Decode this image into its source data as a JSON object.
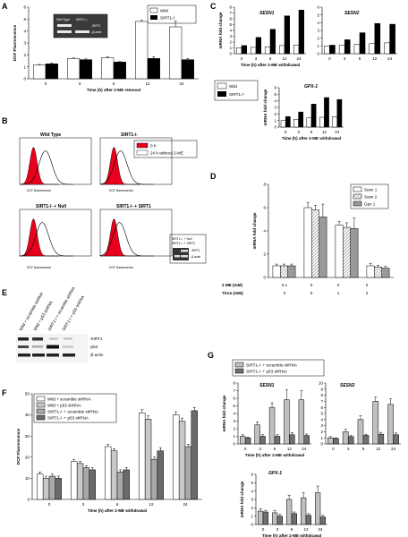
{
  "chart_data": [
    {
      "id": "A",
      "type": "bar",
      "panel_letter": "A",
      "ylabel": "DCF Fluorescence",
      "xlabel": "Time (h) after 2-ME removal",
      "categories": [
        "0",
        "3",
        "6",
        "12",
        "24"
      ],
      "ylim": [
        0,
        6
      ],
      "yticks": [
        0,
        1,
        2,
        3,
        4,
        5,
        6
      ],
      "legend_position": "top-right",
      "inset_labels": [
        "Wild Type",
        "SIRT1-/-",
        "-SIRT1",
        "-β-actin"
      ],
      "series": [
        {
          "name": "Wild",
          "color": "#ffffff",
          "values": [
            1.15,
            1.7,
            1.75,
            4.8,
            4.35
          ],
          "errors": [
            0.05,
            0.06,
            0.1,
            0.1,
            0.5
          ]
        },
        {
          "name": "SIRT1-/-",
          "color": "#000000",
          "values": [
            1.25,
            1.6,
            1.4,
            1.7,
            1.6
          ],
          "errors": [
            0.05,
            0.06,
            0.05,
            0.15,
            0.1
          ]
        }
      ]
    },
    {
      "id": "C1",
      "type": "bar",
      "panel_letter": "C",
      "title": "SESN1",
      "ylabel": "mRNA fold change",
      "xlabel": "Time (h) after 2-ME withdrawal",
      "categories": [
        "0",
        "3",
        "6",
        "12",
        "24"
      ],
      "ylim": [
        0,
        8
      ],
      "yticks": [
        0,
        1,
        2,
        3,
        4,
        5,
        6,
        7,
        8
      ],
      "series": [
        {
          "name": "Wild",
          "color": "#ffffff",
          "values": [
            1,
            1.1,
            1.2,
            1.4,
            1.5
          ]
        },
        {
          "name": "SIRT1-/-",
          "color": "#000000",
          "values": [
            1.4,
            2.8,
            4.2,
            6.5,
            7.5
          ]
        }
      ]
    },
    {
      "id": "C2",
      "type": "bar",
      "title": "SESN2",
      "categories": [
        "0",
        "3",
        "6",
        "12",
        "24"
      ],
      "ylim": [
        0,
        6
      ],
      "yticks": [
        0,
        1,
        2,
        3,
        4,
        5,
        6
      ],
      "series": [
        {
          "name": "Wild",
          "color": "#ffffff",
          "values": [
            1,
            1.1,
            1.2,
            1.3,
            1.4
          ]
        },
        {
          "name": "SIRT1-/-",
          "color": "#000000",
          "values": [
            1.1,
            1.8,
            2.7,
            3.9,
            3.8
          ]
        }
      ]
    },
    {
      "id": "C3",
      "type": "bar",
      "title": "GPX-1",
      "ylabel": "mRNA fold change",
      "xlabel": "Time (h) after 2-ME withdrawal",
      "categories": [
        "0",
        "3",
        "6",
        "12",
        "24"
      ],
      "ylim": [
        0,
        6
      ],
      "yticks": [
        0,
        1,
        2,
        3,
        4,
        5,
        6
      ],
      "legend_position": "left",
      "series": [
        {
          "name": "Wild",
          "color": "#ffffff",
          "values": [
            1,
            1.2,
            1.4,
            1.5,
            1.6
          ]
        },
        {
          "name": "SIRT1-/-",
          "color": "#000000",
          "values": [
            1.6,
            2.3,
            3.5,
            4.5,
            4.2
          ]
        }
      ]
    },
    {
      "id": "D",
      "type": "bar",
      "panel_letter": "D",
      "ylabel": "mRNA fold change",
      "ylim": [
        0,
        8
      ],
      "yticks": [
        0,
        2,
        4,
        6,
        8
      ],
      "legend_position": "top-right",
      "row_labels": [
        {
          "label": "2 ME (mM)",
          "values": [
            "0.1",
            "0",
            "0",
            "0"
          ]
        },
        {
          "label": "Tiron (mM)",
          "values": [
            "0",
            "0",
            "1",
            "2"
          ]
        }
      ],
      "categories": [
        "1",
        "2",
        "3",
        "4"
      ],
      "series": [
        {
          "name": "Sesn 1",
          "pattern": "white",
          "values": [
            1,
            6,
            4.5,
            1
          ],
          "errors": [
            0.15,
            0.45,
            0.3,
            0.2
          ]
        },
        {
          "name": "Sesn 2",
          "pattern": "hatch",
          "values": [
            1,
            5.8,
            4.3,
            0.9
          ],
          "errors": [
            0.15,
            0.4,
            0.4,
            0.15
          ]
        },
        {
          "name": "Gpx 1",
          "pattern": "gray",
          "values": [
            1,
            5.2,
            4.2,
            0.8
          ],
          "errors": [
            0.15,
            1.1,
            0.9,
            0.15
          ]
        }
      ]
    },
    {
      "id": "F",
      "type": "bar",
      "panel_letter": "F",
      "ylabel": "DCF Fluorescence",
      "xlabel": "Time (h) after 2-ME withdrawal",
      "categories": [
        "0",
        "3",
        "6",
        "12",
        "24"
      ],
      "ylim": [
        0,
        50
      ],
      "yticks": [
        0,
        10,
        20,
        30,
        40,
        50
      ],
      "legend_position": "top-left",
      "series": [
        {
          "name": "Wild + scramble shRNA",
          "color": "#ffffff",
          "values": [
            12,
            18,
            25,
            41,
            40
          ],
          "errors": [
            1,
            1,
            1,
            1.5,
            1.5
          ]
        },
        {
          "name": "Wild + p53 shRNA",
          "color": "#c8c8c8",
          "values": [
            10,
            17,
            23,
            38,
            37
          ],
          "errors": [
            1,
            1,
            1,
            1.5,
            1.5
          ]
        },
        {
          "name": "SIRT1-/- + scramble shRNA",
          "color": "#a8a8a8",
          "values": [
            11,
            15,
            13,
            19,
            25
          ],
          "errors": [
            1,
            1,
            1,
            1,
            1
          ]
        },
        {
          "name": "SIRT1-/- + p53 shRNA",
          "color": "#6a6a6a",
          "values": [
            10,
            14,
            14,
            23,
            42
          ],
          "errors": [
            1,
            1,
            1,
            1.5,
            1.5
          ]
        }
      ]
    },
    {
      "id": "G1",
      "type": "bar",
      "panel_letter": "G",
      "title": "SESN1",
      "ylabel": "mRNA fold change",
      "xlabel": "Time (h) after 2-ME withdrawal",
      "categories": [
        "0",
        "3",
        "6",
        "12",
        "24"
      ],
      "ylim": [
        0,
        8
      ],
      "yticks": [
        0,
        1,
        2,
        3,
        4,
        5,
        6,
        7,
        8
      ],
      "series": [
        {
          "name": "SIRT1-/- + scramble shRNA",
          "color": "#c0c0c0",
          "values": [
            1,
            2.5,
            4.8,
            5.8,
            5.8
          ],
          "errors": [
            0.2,
            0.4,
            0.6,
            1.3,
            1.2
          ]
        },
        {
          "name": "SIRT1-/- + p53 shRNA",
          "color": "#707070",
          "values": [
            0.8,
            1,
            1,
            1.2,
            1.1
          ],
          "errors": [
            0.1,
            0.2,
            0.2,
            0.3,
            0.2
          ]
        }
      ]
    },
    {
      "id": "G2",
      "type": "bar",
      "title": "SESN2",
      "categories": [
        "0",
        "3",
        "6",
        "12",
        "24"
      ],
      "ylim": [
        0,
        10
      ],
      "yticks": [
        0,
        1,
        2,
        3,
        4,
        5,
        6,
        7,
        8,
        9,
        10
      ],
      "series": [
        {
          "name": "SIRT1-/- + scramble shRNA",
          "color": "#c0c0c0",
          "values": [
            1,
            2,
            4,
            7,
            6.5
          ],
          "errors": [
            0.2,
            0.4,
            0.6,
            0.7,
            0.9
          ]
        },
        {
          "name": "SIRT1-/- + p53 shRNA",
          "color": "#707070",
          "values": [
            0.9,
            1.2,
            1.4,
            1.6,
            1.5
          ],
          "errors": [
            0.1,
            0.2,
            0.2,
            0.3,
            0.3
          ]
        }
      ]
    },
    {
      "id": "G3",
      "type": "bar",
      "title": "GPX-1",
      "ylabel": "mRNA fold change",
      "xlabel": "Time (h) after 2-ME withdrawal",
      "categories": [
        "0",
        "3",
        "6",
        "12",
        "24"
      ],
      "ylim": [
        0,
        6
      ],
      "yticks": [
        0,
        1,
        2,
        3,
        4,
        5,
        6
      ],
      "series": [
        {
          "name": "SIRT1-/- + scramble shRNA",
          "color": "#c0c0c0",
          "values": [
            1.6,
            1.4,
            3,
            3.2,
            3.8
          ],
          "errors": [
            0.3,
            0.3,
            0.5,
            0.6,
            0.8
          ]
        },
        {
          "name": "SIRT1-/- + p53 shRNA",
          "color": "#707070",
          "values": [
            1.5,
            1,
            1.3,
            1.1,
            0.9
          ],
          "errors": [
            0.2,
            0.2,
            0.2,
            0.2,
            0.2
          ]
        }
      ]
    }
  ],
  "legend_G": [
    "SIRT1-/- + scramble shRNA",
    "SIRT1-/- + p53 shRNA"
  ],
  "flow_B": {
    "panel_letter": "B",
    "xlabel": "DCF fluorescence",
    "legend": [
      "0 h",
      "24 h without 2-ME"
    ],
    "subpanels": [
      "Wild Type",
      "SIRT1-/-",
      "SIRT1-/- + Null",
      "SIRT1-/- + SIRT1"
    ],
    "inset_labels": [
      "SIRT1-/- + Null",
      "SIRT1-/- + SIRT1",
      "- SIRT1",
      "- β-actin"
    ]
  },
  "blot_E": {
    "panel_letter": "E",
    "lanes": [
      "Wild + scramble shRNA",
      "Wild + p53 shRNA",
      "SIRT1-/-+ scramble shRNA",
      "SIRT1-/-+ p53 shRNA"
    ],
    "bands": [
      "-SIRT1",
      "-p53",
      "-β-actin"
    ]
  },
  "colors": {
    "red_fill": "#e8001c",
    "wt_outline": "#000000"
  }
}
